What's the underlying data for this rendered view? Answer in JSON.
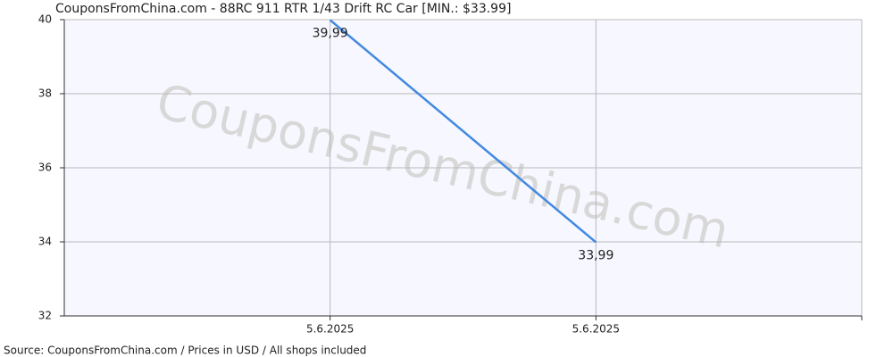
{
  "chart_data": {
    "type": "line",
    "title": "CouponsFromChina.com - 88RC 911 RTR 1/43 Drift RC Car [MIN.: $33.99]",
    "source": "Source: CouponsFromChina.com / Prices in USD / All shops included",
    "watermark": "CouponsFromChina.com",
    "categories": [
      "5.6.2025",
      "5.6.2025"
    ],
    "series": [
      {
        "color": "#4189e0",
        "values": [
          39.99,
          33.99
        ],
        "value_labels": [
          "39,99",
          "33,99"
        ]
      }
    ],
    "ylim": [
      32,
      40
    ],
    "yticks": [
      32,
      34,
      36,
      38,
      40
    ],
    "grid": true
  }
}
